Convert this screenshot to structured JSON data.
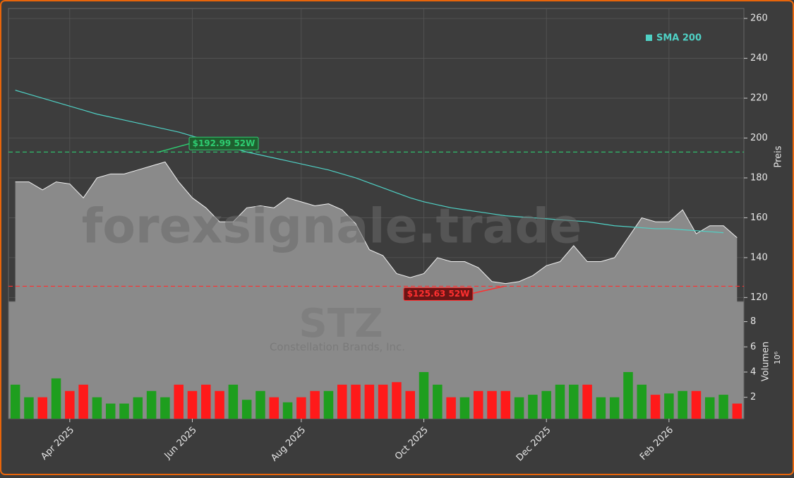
{
  "chart_data": {
    "type": "stock",
    "ylabel": "Preis",
    "ylim": [
      118,
      265
    ],
    "yticks": [
      120,
      140,
      160,
      180,
      200,
      220,
      240,
      260
    ],
    "grid": true,
    "color": "#8a8a8a",
    "categories": [
      null,
      null,
      null,
      null,
      "Apr 2025",
      null,
      null,
      null,
      null,
      null,
      null,
      null,
      null,
      "Jun 2025",
      null,
      null,
      null,
      null,
      null,
      null,
      null,
      "Aug 2025",
      null,
      null,
      null,
      null,
      null,
      null,
      null,
      null,
      "Oct 2025",
      null,
      null,
      null,
      null,
      null,
      null,
      null,
      null,
      "Dec 2025",
      null,
      null,
      null,
      null,
      null,
      null,
      null,
      null,
      "Feb 2026",
      null,
      null,
      null,
      null,
      null
    ],
    "values": [
      178,
      178,
      174,
      178,
      177,
      170,
      180,
      182,
      182,
      184,
      186,
      188,
      178,
      170,
      165,
      158,
      158,
      165,
      166,
      165,
      170,
      168,
      166,
      167,
      164,
      157,
      144,
      141,
      132,
      130,
      132,
      140,
      138,
      138,
      135,
      128,
      127,
      128,
      131,
      136,
      138,
      146,
      138,
      138,
      140,
      150,
      160,
      158,
      158,
      164,
      152,
      156,
      156,
      150
    ],
    "sma": {
      "name": "SMA 200",
      "color": "#4fd1c5",
      "legend": "upper right",
      "values": [
        224,
        222,
        220,
        218,
        216,
        214,
        212,
        210.5,
        209,
        207.5,
        206,
        204.5,
        203,
        201,
        199,
        197,
        195,
        193,
        191.5,
        190,
        188.5,
        187,
        185.5,
        184,
        182,
        180,
        177.5,
        175,
        172.5,
        170,
        168,
        166.5,
        165,
        164,
        163,
        162,
        161,
        160.5,
        160,
        159.5,
        159,
        158.5,
        158,
        157,
        156,
        155.5,
        155,
        154.5,
        154.5,
        154,
        153.5,
        153,
        152.5,
        null
      ]
    },
    "high": {
      "value": 192.99,
      "label": "$192.99 52W",
      "color": "#2ecc71"
    },
    "low": {
      "value": 125.63,
      "label": "$125.63 52W",
      "color": "#ff3030"
    },
    "watermark": "forexsignale.trade",
    "symbol": "STZ",
    "company": "Constellation Brands, Inc.",
    "volume": {
      "label": "Volumen",
      "exponent": "10⁶",
      "ylim": [
        0.3,
        9.6
      ],
      "yticks": [
        2,
        4,
        6,
        8
      ],
      "up_color": "#1e9e1e",
      "down_color": "#ff1a1a",
      "values": [
        3,
        2,
        2,
        3.5,
        2.5,
        3,
        2,
        1.5,
        1.5,
        2,
        2.5,
        2,
        3,
        2.5,
        3,
        2.5,
        3,
        1.8,
        2.5,
        2,
        1.6,
        2,
        2.5,
        2.5,
        3,
        3,
        3,
        3,
        3.2,
        2.5,
        4,
        3,
        2,
        2,
        2.5,
        2.5,
        2.5,
        2,
        2.2,
        2.5,
        3,
        3,
        3,
        2,
        2,
        4,
        3,
        2.2,
        2.3,
        2.5,
        2.5,
        2,
        2.2,
        1.5
      ]
    }
  }
}
